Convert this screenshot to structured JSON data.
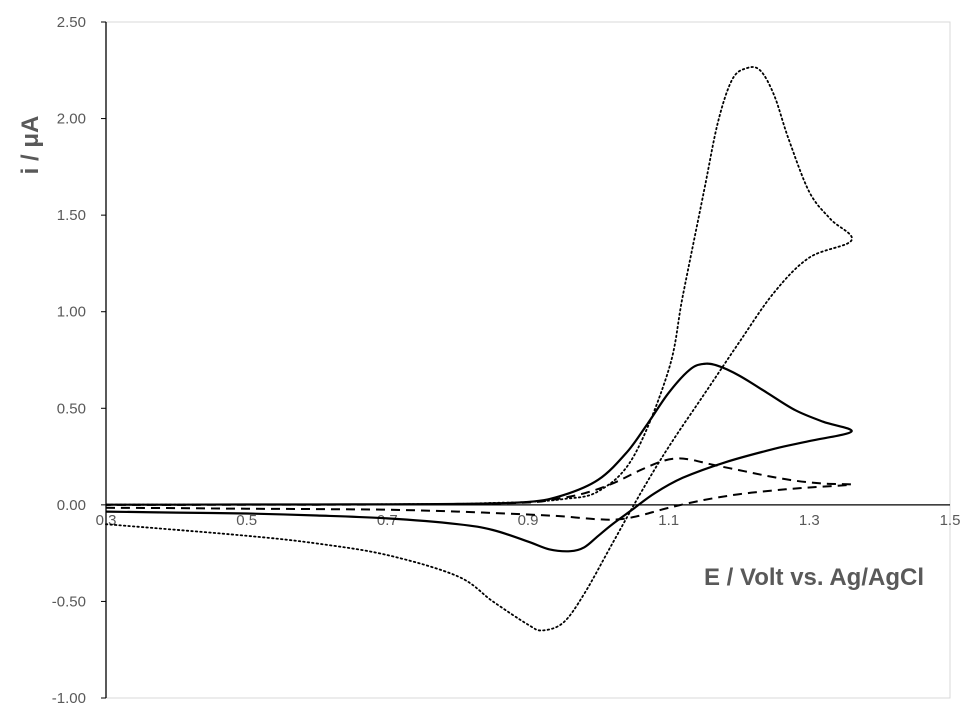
{
  "chart_data": {
    "type": "line",
    "title": "",
    "xlabel": "E / Volt vs. Ag/AgCl",
    "ylabel": "i / μA",
    "xlim": [
      0.3,
      1.5
    ],
    "ylim": [
      -1.0,
      2.5
    ],
    "x_ticks": [
      0.3,
      0.5,
      0.7,
      0.9,
      1.1,
      1.3,
      1.5
    ],
    "x_tick_labels": [
      "0.3",
      "0.5",
      "0.7",
      "0.9",
      "1.1",
      "1.3",
      "1.5"
    ],
    "y_ticks": [
      -1.0,
      -0.5,
      0.0,
      0.5,
      1.0,
      1.5,
      2.0,
      2.5
    ],
    "y_tick_labels": [
      "-1.00",
      "-0.50",
      "0.00",
      "0.50",
      "1.00",
      "1.50",
      "2.00",
      "2.50"
    ],
    "grid": false,
    "legend": "none",
    "series": [
      {
        "style": "dotted",
        "color": "#000000",
        "x": [
          0.3,
          0.5,
          0.6,
          0.7,
          0.8,
          0.85,
          0.9,
          0.92,
          0.95,
          0.98,
          1.02,
          1.06,
          1.1,
          1.15,
          1.2,
          1.25,
          1.3,
          1.36,
          1.33,
          1.3,
          1.27,
          1.25,
          1.23,
          1.21,
          1.19,
          1.17,
          1.15,
          1.12,
          1.1,
          1.05,
          1.0,
          0.95,
          0.9,
          0.85,
          0.8,
          0.7,
          0.6,
          0.5,
          0.4,
          0.3
        ],
        "y": [
          -0.1,
          -0.16,
          -0.2,
          -0.26,
          -0.37,
          -0.5,
          -0.62,
          -0.65,
          -0.61,
          -0.46,
          -0.2,
          0.06,
          0.3,
          0.57,
          0.84,
          1.1,
          1.28,
          1.37,
          1.48,
          1.62,
          1.9,
          2.12,
          2.25,
          2.26,
          2.2,
          1.98,
          1.62,
          1.08,
          0.7,
          0.25,
          0.07,
          0.03,
          0.015,
          0.01,
          0.005,
          0.003,
          0.002,
          0.002,
          0.001,
          0.001
        ]
      },
      {
        "style": "solid",
        "color": "#000000",
        "x": [
          0.3,
          0.4,
          0.5,
          0.6,
          0.7,
          0.8,
          0.85,
          0.9,
          0.93,
          0.96,
          0.98,
          1.0,
          1.02,
          1.05,
          1.08,
          1.12,
          1.18,
          1.25,
          1.3,
          1.36,
          1.32,
          1.28,
          1.24,
          1.2,
          1.17,
          1.15,
          1.13,
          1.1,
          1.07,
          1.04,
          1.0,
          0.95,
          0.9,
          0.8,
          0.7,
          0.6,
          0.5,
          0.4,
          0.3
        ],
        "y": [
          -0.035,
          -0.04,
          -0.045,
          -0.055,
          -0.07,
          -0.1,
          -0.13,
          -0.19,
          -0.23,
          -0.24,
          -0.22,
          -0.16,
          -0.1,
          -0.02,
          0.06,
          0.14,
          0.22,
          0.29,
          0.33,
          0.38,
          0.43,
          0.49,
          0.58,
          0.67,
          0.72,
          0.73,
          0.7,
          0.58,
          0.42,
          0.27,
          0.13,
          0.05,
          0.015,
          0.005,
          0.003,
          0.002,
          0.002,
          0.001,
          0.001
        ]
      },
      {
        "style": "dashed",
        "color": "#000000",
        "x": [
          0.3,
          0.4,
          0.5,
          0.6,
          0.7,
          0.8,
          0.9,
          0.95,
          1.0,
          1.03,
          1.06,
          1.1,
          1.15,
          1.2,
          1.25,
          1.3,
          1.36,
          1.32,
          1.28,
          1.24,
          1.2,
          1.16,
          1.13,
          1.11,
          1.09,
          1.06,
          1.02,
          0.98,
          0.94,
          0.9,
          0.8,
          0.7,
          0.6,
          0.5,
          0.4,
          0.3
        ],
        "y": [
          -0.015,
          -0.017,
          -0.02,
          -0.022,
          -0.025,
          -0.035,
          -0.05,
          -0.06,
          -0.075,
          -0.075,
          -0.055,
          -0.015,
          0.025,
          0.055,
          0.075,
          0.09,
          0.105,
          0.11,
          0.125,
          0.15,
          0.18,
          0.21,
          0.235,
          0.24,
          0.225,
          0.18,
          0.11,
          0.06,
          0.03,
          0.012,
          0.004,
          0.002,
          0.001,
          0.001,
          0.0,
          0.0
        ]
      }
    ]
  }
}
